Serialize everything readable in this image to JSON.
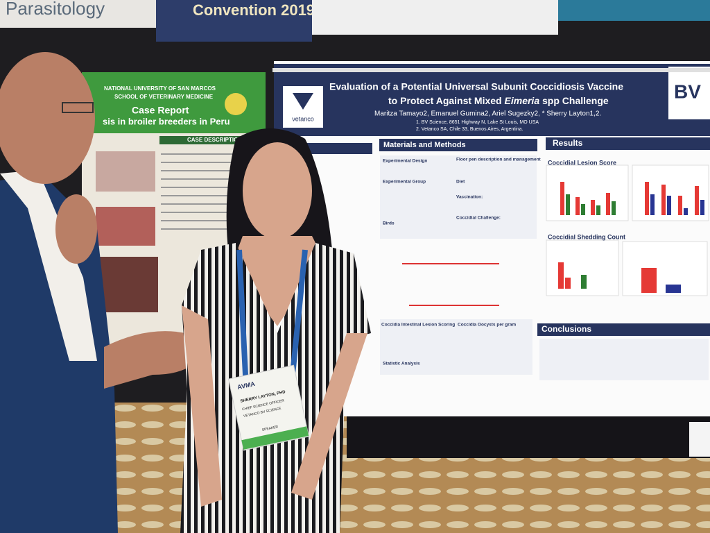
{
  "banner": {
    "left": "Parasitology",
    "right": "Convention 2019"
  },
  "left_poster": {
    "university": "NATIONAL UNIVERSITY OF SAN MARCOS",
    "school": "SCHOOL OF VETERINARY MEDICINE",
    "title": "Case Report",
    "subtitle": "sis in broiler breeders in Peru",
    "section": "CASE DESCRIPTION"
  },
  "poster": {
    "title_line1": "Evaluation of a Potential Universal Subunit Coccidiosis Vaccine",
    "title_line2_start": "to Protect Against Mixed ",
    "title_line2_italic": "Eimeria",
    "title_line2_end": " spp Challenge",
    "authors": "Maritza Tamayo2, Emanuel Gumina2, Ariel Sugezky2, * Sherry Layton1,2.",
    "affiliation1": "1.  BV Science, 8651 Highway N, Lake St Louis, MO USA",
    "affiliation2": "2. Vetanco SA, Chile 33, Buenos Aires, Argentina.",
    "logo_left": "vetanco",
    "logo_right": "BV",
    "sections": {
      "methods": "Materials and Methods",
      "results": "Results",
      "conclusions": "Conclusions"
    },
    "methods_items": [
      "Experimental Design",
      "Experimental Group",
      "Birds",
      "Floor pen description and management",
      "Diet",
      "Vaccination:",
      "Coccidial Challenge:",
      "Coccidia Intestinal Lesion Scoring",
      "Coccidia Oocysts per gram",
      "Statistic Analysis"
    ],
    "results_items": [
      "Coccidial Lesion Score",
      "Coccidial Shedding Count"
    ]
  },
  "badge": {
    "org": "AVMA",
    "name": "SHERRY LAYTON, PHD",
    "role": "CHIEF SCIENCE OFFICER",
    "company": "VETANCO BV SCIENCE",
    "tag": "SPEAKER"
  }
}
